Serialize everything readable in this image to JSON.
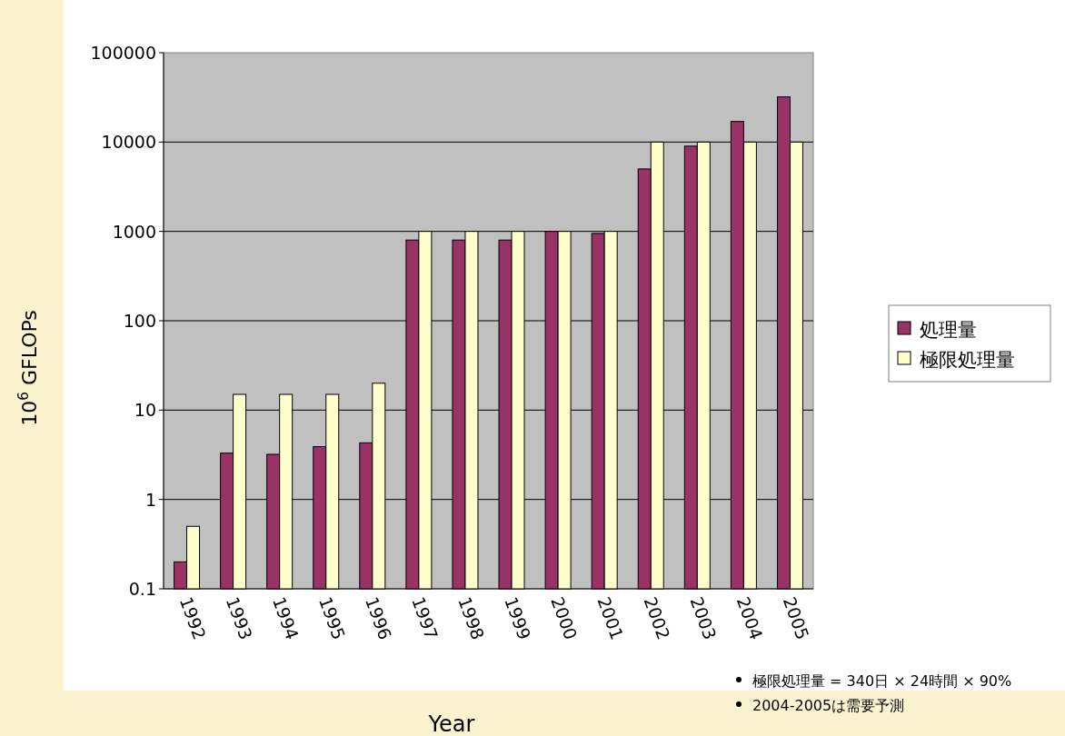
{
  "chart_data": {
    "type": "bar",
    "xlabel": "Year",
    "ylabel": "10$^{6}$ GFLOPs",
    "categories": [
      "1992",
      "1993",
      "1994",
      "1995",
      "1996",
      "1997",
      "1998",
      "1999",
      "2000",
      "2001",
      "2002",
      "2003",
      "2004",
      "2005"
    ],
    "series": [
      {
        "name": "処理量",
        "color": "#993366",
        "values": [
          0.2,
          3.3,
          3.2,
          3.9,
          4.3,
          800,
          800,
          800,
          1000,
          950,
          5000,
          9000,
          17000,
          32000
        ]
      },
      {
        "name": "極限処理量",
        "color": "#ffffcc",
        "values": [
          0.5,
          15,
          15,
          15,
          20,
          1000,
          1000,
          1000,
          1000,
          1000,
          10000,
          10000,
          10000,
          10000
        ]
      }
    ],
    "ylim": [
      0.1,
      100000
    ],
    "yticks": [
      0.1,
      1,
      10,
      100,
      1000,
      10000,
      100000
    ],
    "log": "y",
    "grid": "y",
    "legend": "right",
    "annotations": [
      "極限処理量 = 340日 × 24時間 × 90%",
      "2004-2005は需要予測"
    ]
  }
}
